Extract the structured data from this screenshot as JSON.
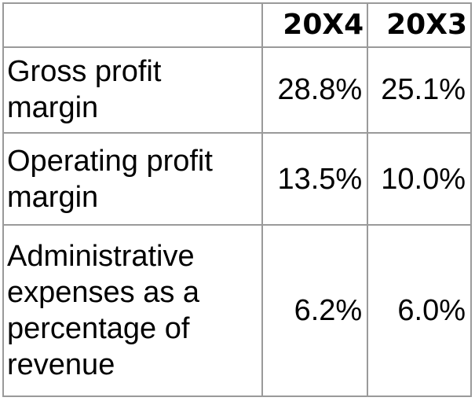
{
  "table": {
    "headers": [
      "",
      "20X4",
      "20X3"
    ],
    "rows": [
      {
        "label": "Gross profit margin",
        "y20x4": "28.8%",
        "y20x3": "25.1%"
      },
      {
        "label": "Operating profit margin",
        "y20x4": "13.5%",
        "y20x3": "10.0%"
      },
      {
        "label": "Administrative expenses as a percentage of revenue",
        "y20x4": "6.2%",
        "y20x3": "6.0%"
      }
    ]
  }
}
